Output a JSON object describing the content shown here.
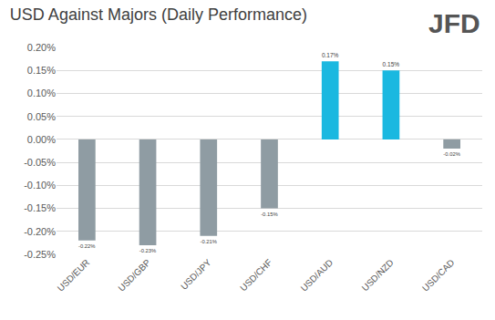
{
  "chart_data": {
    "type": "bar",
    "title": "USD Against Majors (Daily Performance)",
    "annotations": [
      "JFD"
    ],
    "categories": [
      "USD/EUR",
      "USD/GBP",
      "USD/JPY",
      "USD/CHF",
      "USD/AUD",
      "USD/NZD",
      "USD/CAD"
    ],
    "values": [
      -0.22,
      -0.23,
      -0.21,
      -0.15,
      0.17,
      0.15,
      -0.02
    ],
    "value_labels": [
      "-0.22%",
      "-0.23%",
      "-0.21%",
      "-0.15%",
      "0.17%",
      "0.15%",
      "-0.02%"
    ],
    "colors": [
      "#8f9ca3",
      "#8f9ca3",
      "#8f9ca3",
      "#8f9ca3",
      "#1ab8e0",
      "#1ab8e0",
      "#8f9ca3"
    ],
    "ylim": [
      -0.25,
      0.2
    ],
    "yticks": [
      {
        "value": -0.25,
        "label": "-0.25%"
      },
      {
        "value": -0.2,
        "label": "-0.20%"
      },
      {
        "value": -0.15,
        "label": "-0.15%"
      },
      {
        "value": -0.1,
        "label": "-0.10%"
      },
      {
        "value": -0.05,
        "label": "-0.05%"
      },
      {
        "value": 0,
        "label": "0.00%"
      },
      {
        "value": 0.05,
        "label": "0.05%"
      },
      {
        "value": 0.1,
        "label": "0.10%"
      },
      {
        "value": 0.15,
        "label": "0.15%"
      },
      {
        "value": 0.2,
        "label": "0.20%"
      }
    ],
    "grid": true,
    "data_labels": true
  }
}
